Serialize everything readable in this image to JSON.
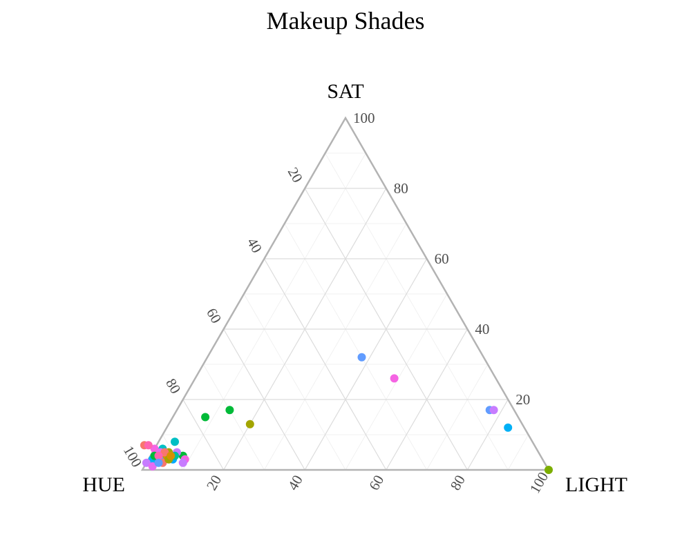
{
  "chart_data": {
    "type": "scatter",
    "subtype": "ternary",
    "title": "Makeup Shades",
    "axes": {
      "top": "SAT",
      "left": "HUE",
      "right": "LIGHT"
    },
    "range": [
      0,
      100
    ],
    "ticks": [
      20,
      40,
      60,
      80,
      100
    ],
    "minor_ticks": [
      10,
      30,
      50,
      70,
      90
    ],
    "grid": true,
    "legend": "none",
    "points": [
      {
        "hue": 77,
        "sat": 15,
        "light": 8,
        "color": "#00BA38"
      },
      {
        "hue": 70,
        "sat": 17,
        "light": 13,
        "color": "#00BA38"
      },
      {
        "hue": 67,
        "sat": 13,
        "light": 20,
        "color": "#A3A500"
      },
      {
        "hue": 88,
        "sat": 8,
        "light": 4,
        "color": "#00BFC4"
      },
      {
        "hue": 30,
        "sat": 32,
        "light": 38,
        "color": "#619CFF"
      },
      {
        "hue": 25,
        "sat": 26,
        "light": 49,
        "color": "#F564E3"
      },
      {
        "hue": 6,
        "sat": 17,
        "light": 77,
        "color": "#619CFF"
      },
      {
        "hue": 5,
        "sat": 17,
        "light": 78,
        "color": "#C77CFF"
      },
      {
        "hue": 4,
        "sat": 12,
        "light": 84,
        "color": "#00B0F6"
      },
      {
        "hue": 0,
        "sat": 0,
        "light": 100,
        "color": "#7CAE00"
      },
      {
        "hue": 96,
        "sat": 7,
        "light": -3,
        "color": "#F8766D"
      },
      {
        "hue": 94,
        "sat": 6,
        "light": 0,
        "color": "#F564E3"
      },
      {
        "hue": 95,
        "sat": 7,
        "light": -2,
        "color": "#FF64B0"
      },
      {
        "hue": 92,
        "sat": 6,
        "light": 2,
        "color": "#00BFC4"
      },
      {
        "hue": 93,
        "sat": 5,
        "light": 2,
        "color": "#E76BF3"
      },
      {
        "hue": 91,
        "sat": 5,
        "light": 4,
        "color": "#A3A500"
      },
      {
        "hue": 90,
        "sat": 4,
        "light": 6,
        "color": "#F564E3"
      },
      {
        "hue": 93,
        "sat": 3,
        "light": 4,
        "color": "#619CFF"
      },
      {
        "hue": 96,
        "sat": 3,
        "light": 1,
        "color": "#00B0F6"
      },
      {
        "hue": 98,
        "sat": 2,
        "light": 0,
        "color": "#C77CFF"
      },
      {
        "hue": 95,
        "sat": 4,
        "light": 1,
        "color": "#00BA38"
      },
      {
        "hue": 91,
        "sat": 3,
        "light": 6,
        "color": "#00A9FF"
      },
      {
        "hue": 92,
        "sat": 4,
        "light": 4,
        "color": "#D89000"
      },
      {
        "hue": 94,
        "sat": 2,
        "light": 4,
        "color": "#F8766D"
      },
      {
        "hue": 88,
        "sat": 4,
        "light": 8,
        "color": "#00BA38"
      },
      {
        "hue": 97,
        "sat": 1,
        "light": 2,
        "color": "#E76BF3"
      },
      {
        "hue": 92,
        "sat": 5,
        "light": 3,
        "color": "#F8766D"
      },
      {
        "hue": 89,
        "sat": 5,
        "light": 6,
        "color": "#C77CFF"
      },
      {
        "hue": 94,
        "sat": 4,
        "light": 2,
        "color": "#FF64B0"
      },
      {
        "hue": 90,
        "sat": 4,
        "light": 6,
        "color": "#00C19A"
      },
      {
        "hue": 88,
        "sat": 3,
        "light": 9,
        "color": "#F564E3"
      },
      {
        "hue": 92,
        "sat": 3,
        "light": 5,
        "color": "#A3A500"
      },
      {
        "hue": 89,
        "sat": 2,
        "light": 9,
        "color": "#C77CFF"
      },
      {
        "hue": 95,
        "sat": 2,
        "light": 3,
        "color": "#619CFF"
      },
      {
        "hue": 91,
        "sat": 4,
        "light": 5,
        "color": "#D89000"
      }
    ]
  }
}
